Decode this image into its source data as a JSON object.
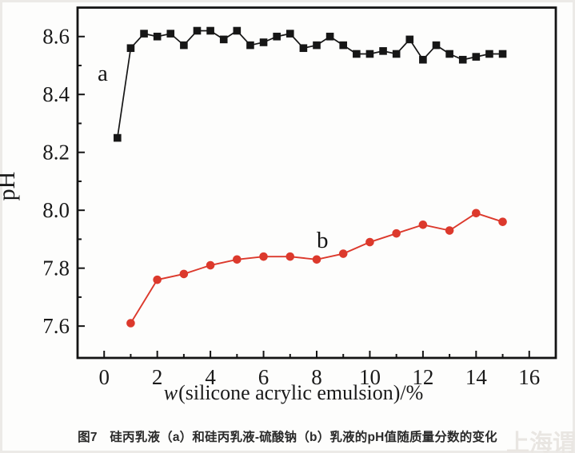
{
  "chart_data": {
    "type": "line",
    "title": "",
    "xlabel": "w(silicone acrylic emulsion)/%",
    "ylabel": "pH",
    "xlim": [
      -1,
      17
    ],
    "ylim": [
      7.49,
      8.7
    ],
    "grid": false,
    "legend_position": "inline-letters",
    "x_major_ticks": [
      0,
      2,
      4,
      6,
      8,
      10,
      12,
      14,
      16
    ],
    "x_minor_ticks": [
      1,
      3,
      5,
      7,
      9,
      11,
      13,
      15
    ],
    "y_major_ticks": [
      7.6,
      7.8,
      8.0,
      8.2,
      8.4,
      8.6
    ],
    "y_minor_ticks": [
      7.7,
      7.9,
      8.1,
      8.3,
      8.5
    ],
    "series": [
      {
        "name": "a",
        "label": "a",
        "marker": "square",
        "color": "#161616",
        "x": [
          0.5,
          1.0,
          1.5,
          2.0,
          2.5,
          3.0,
          3.5,
          4.0,
          4.5,
          5.0,
          5.5,
          6.0,
          6.5,
          7.0,
          7.5,
          8.0,
          8.5,
          9.0,
          9.5,
          10.0,
          10.5,
          11.0,
          11.5,
          12.0,
          12.5,
          13.0,
          13.5,
          14.0,
          14.5,
          15.0
        ],
        "y": [
          8.25,
          8.56,
          8.61,
          8.6,
          8.61,
          8.57,
          8.62,
          8.62,
          8.59,
          8.62,
          8.57,
          8.58,
          8.6,
          8.61,
          8.56,
          8.57,
          8.6,
          8.57,
          8.54,
          8.54,
          8.55,
          8.54,
          8.59,
          8.52,
          8.57,
          8.54,
          8.52,
          8.53,
          8.54,
          8.54
        ]
      },
      {
        "name": "b",
        "label": "b",
        "marker": "circle",
        "color": "#dc392c",
        "x": [
          1,
          2,
          3,
          4,
          5,
          6,
          7,
          8,
          9,
          10,
          11,
          12,
          13,
          14,
          15
        ],
        "y": [
          7.61,
          7.76,
          7.78,
          7.81,
          7.83,
          7.84,
          7.84,
          7.83,
          7.85,
          7.89,
          7.92,
          7.95,
          7.93,
          7.99,
          7.96
        ]
      }
    ]
  },
  "labels": {
    "series_a": "a",
    "series_b": "b",
    "ylabel": "pH",
    "xlabel_w": "w",
    "xlabel_rest": "(silicone acrylic emulsion)/%"
  },
  "caption": {
    "text": "图7　硅丙乳液（a）和硅丙乳液-硫酸钠（b）乳液的pH值随质量分数的变化"
  },
  "watermark": {
    "text": "上海谓鑫"
  },
  "colors": {
    "axis": "#141414",
    "series_a": "#161616",
    "series_b": "#dc392c",
    "caption_text": "#2a2a2a",
    "watermark_text": "#e9e6e2",
    "page_edge": "#eceae7"
  }
}
